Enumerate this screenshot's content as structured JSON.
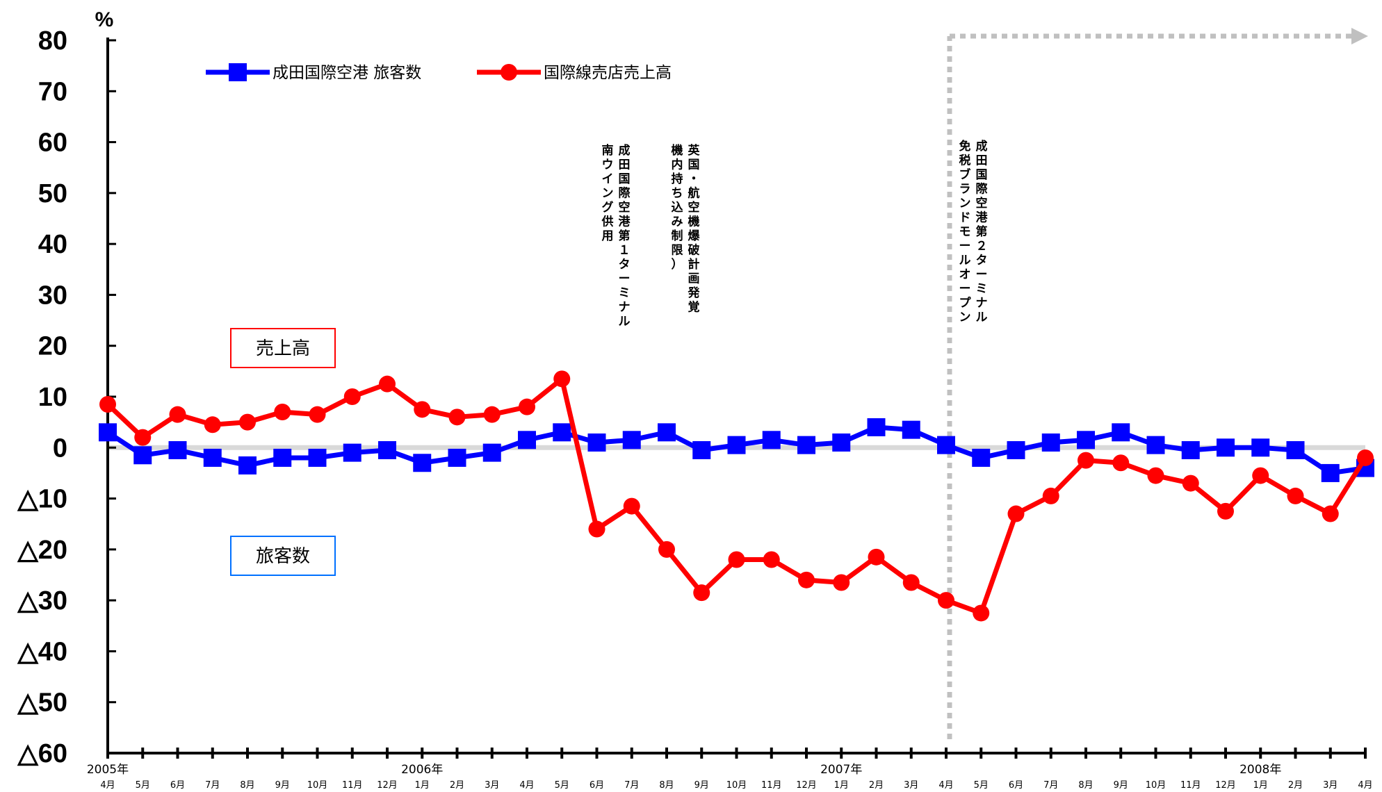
{
  "chart_data": {
    "type": "line",
    "ylabel": "%",
    "ylim": [
      -60,
      80
    ],
    "yticks": [
      {
        "value": 80,
        "label": "80"
      },
      {
        "value": 70,
        "label": "70"
      },
      {
        "value": 60,
        "label": "60"
      },
      {
        "value": 50,
        "label": "50"
      },
      {
        "value": 40,
        "label": "40"
      },
      {
        "value": 30,
        "label": "30"
      },
      {
        "value": 20,
        "label": "20"
      },
      {
        "value": 10,
        "label": "10"
      },
      {
        "value": 0,
        "label": "0"
      },
      {
        "value": -10,
        "label": "△10"
      },
      {
        "value": -20,
        "label": "△20"
      },
      {
        "value": -30,
        "label": "△30"
      },
      {
        "value": -40,
        "label": "△40"
      },
      {
        "value": -50,
        "label": "△50"
      },
      {
        "value": -60,
        "label": "△60"
      }
    ],
    "categories": [
      "4月",
      "5月",
      "6月",
      "7月",
      "8月",
      "9月",
      "10月",
      "11月",
      "12月",
      "1月",
      "2月",
      "3月",
      "4月",
      "5月",
      "6月",
      "7月",
      "8月",
      "9月",
      "10月",
      "11月",
      "12月",
      "1月",
      "2月",
      "3月",
      "4月",
      "5月",
      "6月",
      "7月",
      "8月",
      "9月",
      "10月",
      "11月",
      "12月",
      "1月",
      "2月",
      "3月",
      "4月"
    ],
    "year_labels": [
      {
        "index": 0,
        "label": "2005年"
      },
      {
        "index": 9,
        "label": "2006年"
      },
      {
        "index": 21,
        "label": "2007年"
      },
      {
        "index": 33,
        "label": "2008年"
      }
    ],
    "series": [
      {
        "name": "成田国際空港  旅客数",
        "color": "#0000ff",
        "marker": "square",
        "values": [
          3,
          -1.5,
          -0.5,
          -2,
          -3.5,
          -2,
          -2,
          -1,
          -0.5,
          -3,
          -2,
          -1,
          1.5,
          3,
          1,
          1.5,
          3,
          -0.5,
          0.5,
          1.5,
          0.5,
          1,
          4,
          3.5,
          0.5,
          -2,
          -0.5,
          1,
          1.5,
          3,
          0.5,
          -0.5,
          0,
          0,
          -0.5,
          -5,
          -4
        ]
      },
      {
        "name": "国際線売店売上高",
        "color": "#ff0000",
        "marker": "circle",
        "values": [
          8.5,
          2,
          6.5,
          4.5,
          5,
          7,
          6.5,
          10,
          12.5,
          7.5,
          6,
          6.5,
          8,
          13.5,
          -16,
          -11.5,
          -20,
          -28.5,
          -22,
          -22,
          -26,
          -26.5,
          -21.5,
          -26.5,
          -30,
          -32.5,
          -13,
          -9.5,
          -2.5,
          -3,
          -5.5,
          -7,
          -12.5,
          -5.5,
          -9.5,
          -13,
          -2
        ]
      }
    ],
    "box_labels": [
      {
        "text": "売上高",
        "color": "#ff0000"
      },
      {
        "text": "旅客数",
        "color": "#0070ff"
      }
    ],
    "annotations": [
      {
        "index": 14,
        "lines": [
          "成田国際空港第１ターミナル",
          "南ウイング供用"
        ]
      },
      {
        "index": 16,
        "lines": [
          "英国・航空機爆破計画発覚",
          "機内持ち込み制限）"
        ]
      },
      {
        "index": 24,
        "lines": [
          "成田国際空港第２ターミナル",
          "免税ブランドモールオープン"
        ]
      }
    ],
    "reference_line_index": 24,
    "reference_line_color": "#c0c0c0",
    "zero_line_color": "#d9d9d9",
    "grid": false,
    "legend_position": "top-left"
  }
}
